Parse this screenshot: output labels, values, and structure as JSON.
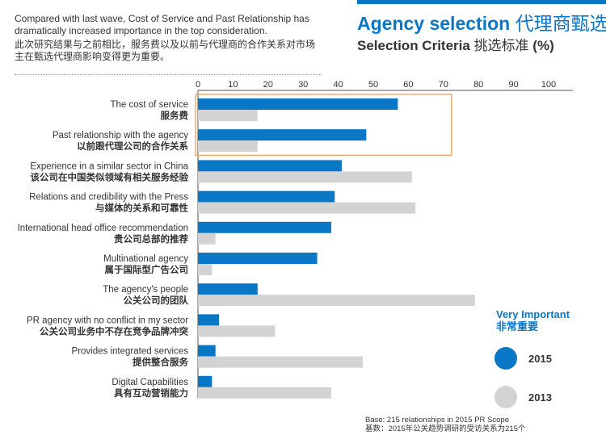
{
  "header": {
    "note_en": "Compared with last wave, Cost of Service and Past Relationship has dramatically increased importance in the top consideration.",
    "note_zh": "此次研究结果与之前相比，服务费以及以前与代理商的合作关系对市场主在甄选代理商影响变得更为重要。",
    "title_en": "Agency selection",
    "title_zh": "代理商甄选",
    "subtitle_en": "Selection Criteria",
    "subtitle_zh": "挑选标准",
    "subtitle_unit": "(%)"
  },
  "legend": {
    "title_en": "Very Important",
    "title_zh": "非常重要"
  },
  "footer": {
    "base_en": "Base: 215 relationships in 2015 PR Scope",
    "base_zh": "基数：2015年公关趋势调研的受访关系为215个"
  },
  "colors": {
    "series_2015": "#0a77c6",
    "series_2013": "#d3d3d3",
    "highlight_box": "#f0a868",
    "accent": "#0a77c6"
  },
  "chart_data": {
    "type": "bar",
    "orientation": "horizontal",
    "x_ticks": [
      "0",
      "10",
      "20",
      "30",
      "40",
      "50",
      "60",
      "70",
      "80",
      "90",
      "100"
    ],
    "xlim": [
      0,
      100
    ],
    "categories": [
      {
        "en": "The cost of service",
        "zh": "服务费"
      },
      {
        "en": "Past relationship with the agency",
        "zh": "以前跟代理公司的合作关系"
      },
      {
        "en": "Experience in a similar sector in China",
        "zh": "该公司在中国类似领域有相关服务经验"
      },
      {
        "en": "Relations and credibility with the Press",
        "zh": "与媒体的关系和可靠性"
      },
      {
        "en": "International head office recommendation",
        "zh": "贵公司总部的推荐"
      },
      {
        "en": "Multinational agency",
        "zh": "属于国际型广告公司"
      },
      {
        "en": "The agency's people",
        "zh": "公关公司的团队"
      },
      {
        "en": "PR agency with no conflict in my sector",
        "zh": "公关公司业务中不存在竞争品牌冲突"
      },
      {
        "en": "Provides integrated services",
        "zh": "提供整合服务"
      },
      {
        "en": "Digital Capabilities",
        "zh": "具有互动营销能力"
      }
    ],
    "series": [
      {
        "name": "2015",
        "values": [
          57,
          48,
          41,
          39,
          38,
          34,
          17,
          6,
          5,
          4
        ]
      },
      {
        "name": "2013",
        "values": [
          17,
          17,
          61,
          62,
          5,
          4,
          79,
          22,
          47,
          38
        ]
      }
    ],
    "highlighted_categories": [
      0,
      1
    ],
    "grid": false,
    "legend_position": "right"
  }
}
